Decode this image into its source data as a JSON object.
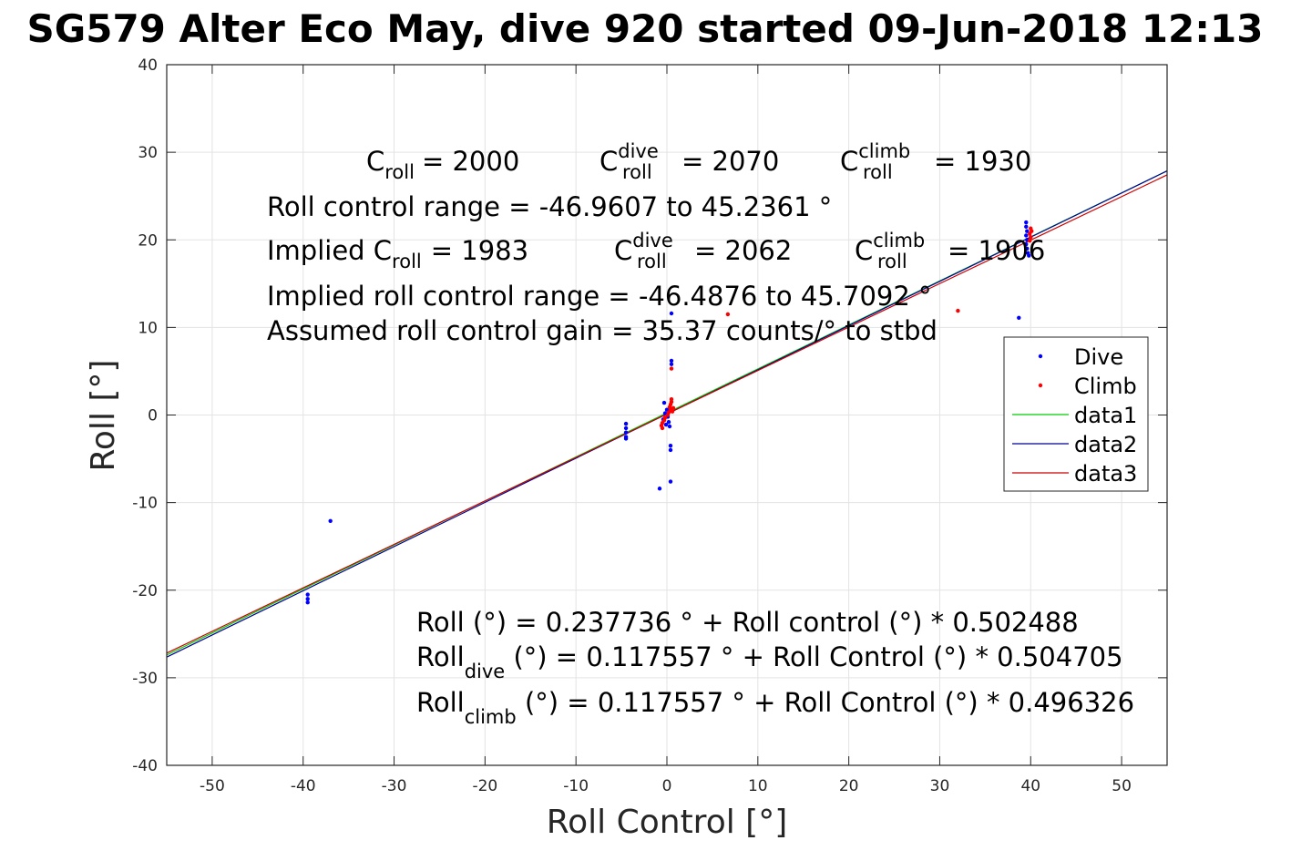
{
  "chart_data": {
    "type": "scatter",
    "title": "SG579 Alter Eco May, dive 920 started 09-Jun-2018 12:13",
    "xlabel": "Roll Control [°]",
    "ylabel": "Roll [°]",
    "xlim": [
      -55,
      55
    ],
    "ylim": [
      -40,
      40
    ],
    "xticks": [
      -50,
      -40,
      -30,
      -20,
      -10,
      0,
      10,
      20,
      30,
      40,
      50
    ],
    "yticks": [
      -40,
      -30,
      -20,
      -10,
      0,
      10,
      20,
      30,
      40
    ],
    "grid": true,
    "legend_position": "right",
    "annotations": {
      "c_roll": {
        "base": "C",
        "sub": "roll",
        "value": "= 2000"
      },
      "c_roll_dive": {
        "base": "C",
        "sub": "roll",
        "sup": "dive",
        "value": "= 2070"
      },
      "c_roll_climb": {
        "base": "C",
        "sub": "roll",
        "sup": "climb",
        "value": "= 1930"
      },
      "roll_control_range": "Roll control range = -46.9607 to 45.2361 °",
      "implied_c_roll": {
        "prefix": "Implied C",
        "sub": "roll",
        "value": "= 1983"
      },
      "implied_c_roll_dive": {
        "base": "C",
        "sub": "roll",
        "sup": "dive",
        "value": "= 2062"
      },
      "implied_c_roll_climb": {
        "base": "C",
        "sub": "roll",
        "sup": "climb",
        "value": "= 1906"
      },
      "implied_range": "Implied roll control range = -46.4876 to 45.7092 °",
      "gain": "Assumed roll control gain = 35.37 counts/° to stbd",
      "fit_all": "Roll (°) = 0.237736 ° + Roll control (°) * 0.502488",
      "fit_dive": {
        "base": "Roll",
        "sub": "dive",
        "rest": " (°) = 0.117557 ° + Roll Control (°) * 0.504705"
      },
      "fit_climb": {
        "base": "Roll",
        "sub": "climb",
        "rest": " (°) = 0.117557 ° + Roll Control (°) * 0.496326"
      }
    },
    "series": [
      {
        "name": "Dive",
        "kind": "points",
        "color": "#0000ff",
        "points": [
          [
            -37,
            -12.1
          ],
          [
            -39.5,
            -20.5
          ],
          [
            -39.5,
            -21
          ],
          [
            -39.5,
            -21.4
          ],
          [
            -4.5,
            -1
          ],
          [
            -4.5,
            -1.5
          ],
          [
            -4.5,
            -2
          ],
          [
            -4.5,
            -2.5
          ],
          [
            -4.5,
            -2.7
          ],
          [
            -0.8,
            -8.4
          ],
          [
            0.4,
            -7.6
          ],
          [
            0.4,
            -3.5
          ],
          [
            0.4,
            -4
          ],
          [
            0.5,
            11.6
          ],
          [
            0.5,
            6.2
          ],
          [
            0.5,
            5.8
          ],
          [
            -0.3,
            1.4
          ],
          [
            0,
            0.6
          ],
          [
            -0.2,
            0.2
          ],
          [
            0.1,
            -0.2
          ],
          [
            -0.4,
            -0.5
          ],
          [
            0.2,
            -0.8
          ],
          [
            -0.1,
            -1.1
          ],
          [
            0.3,
            -1.3
          ],
          [
            38.7,
            11.1
          ],
          [
            39.5,
            22
          ],
          [
            39.5,
            21.5
          ],
          [
            39.6,
            21
          ],
          [
            39.5,
            20.5
          ],
          [
            39.6,
            20
          ],
          [
            39.5,
            19.5
          ],
          [
            39.6,
            19
          ],
          [
            39.7,
            18.5
          ],
          [
            39.8,
            18.2
          ]
        ]
      },
      {
        "name": "Climb",
        "kind": "points",
        "color": "#ff0000",
        "points": [
          [
            6.7,
            11.5
          ],
          [
            32,
            11.9
          ],
          [
            0.5,
            5.3
          ],
          [
            0.5,
            1.8
          ],
          [
            0.5,
            1.5
          ],
          [
            0.4,
            1.2
          ],
          [
            0.3,
            0.9
          ],
          [
            0.4,
            0.6
          ],
          [
            0.2,
            0.3
          ],
          [
            0.1,
            0
          ],
          [
            -0.2,
            -0.3
          ],
          [
            -0.3,
            -0.6
          ],
          [
            -0.5,
            -0.9
          ],
          [
            -0.6,
            -1.2
          ],
          [
            -0.5,
            -1.5
          ],
          [
            0.6,
            0.4
          ],
          [
            0.7,
            0.8
          ],
          [
            40,
            21.3
          ],
          [
            40.1,
            21
          ],
          [
            39.9,
            20.7
          ],
          [
            40,
            20.3
          ],
          [
            39.9,
            19.9
          ]
        ]
      },
      {
        "name": "data1",
        "kind": "line",
        "color": "#00cc00",
        "intercept": 0.237736,
        "slope": 0.502488
      },
      {
        "name": "data2",
        "kind": "line",
        "color": "#000099",
        "intercept": 0.117557,
        "slope": 0.504705
      },
      {
        "name": "data3",
        "kind": "line",
        "color": "#cc0000",
        "intercept": 0.117557,
        "slope": 0.496326
      }
    ]
  }
}
